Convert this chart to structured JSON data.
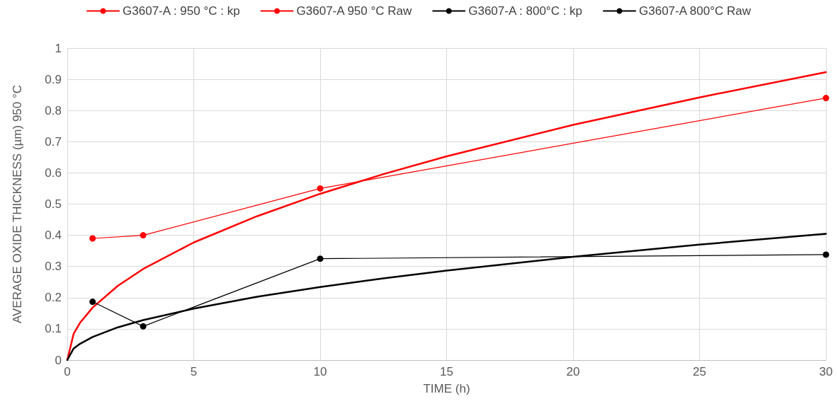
{
  "chart_data": {
    "type": "line",
    "xlabel": "TIME (h)",
    "ylabel": "AVERAGE OXIDE THICKNESS (µm) 950 °C",
    "xlim": [
      0,
      30
    ],
    "xticks": [
      0,
      5,
      10,
      15,
      20,
      25,
      30
    ],
    "ylim": [
      0,
      1
    ],
    "yticks": [
      0,
      0.1,
      0.2,
      0.3,
      0.4,
      0.5,
      0.6,
      0.7,
      0.8,
      0.9,
      1
    ],
    "grid": true,
    "legend": "top",
    "series": [
      {
        "name": "G3607-A : 950 °C : kp",
        "color": "#ff0000",
        "marker": "none",
        "x": [
          0,
          0.25,
          0.5,
          1,
          2,
          3,
          5,
          7.5,
          10,
          12.5,
          15,
          20,
          25,
          30
        ],
        "values": [
          0,
          0.084,
          0.119,
          0.168,
          0.238,
          0.292,
          0.377,
          0.461,
          0.533,
          0.596,
          0.653,
          0.754,
          0.842,
          0.923
        ]
      },
      {
        "name": "G3607-A 950 °C Raw",
        "color": "#ff0000",
        "marker": "circle",
        "x": [
          1,
          3,
          10,
          30
        ],
        "values": [
          0.39,
          0.4,
          0.55,
          0.84
        ]
      },
      {
        "name": "G3607-A : 800°C : kp",
        "color": "#000000",
        "marker": "none",
        "x": [
          0,
          0.25,
          0.5,
          1,
          2,
          3,
          5,
          7.5,
          10,
          12.5,
          15,
          20,
          25,
          30
        ],
        "values": [
          0,
          0.037,
          0.052,
          0.074,
          0.105,
          0.128,
          0.165,
          0.203,
          0.234,
          0.262,
          0.287,
          0.331,
          0.37,
          0.405
        ]
      },
      {
        "name": "G3607-A 800°C Raw",
        "color": "#000000",
        "marker": "circle",
        "x": [
          1,
          3,
          10,
          30
        ],
        "values": [
          0.187,
          0.108,
          0.325,
          0.338
        ]
      }
    ]
  }
}
